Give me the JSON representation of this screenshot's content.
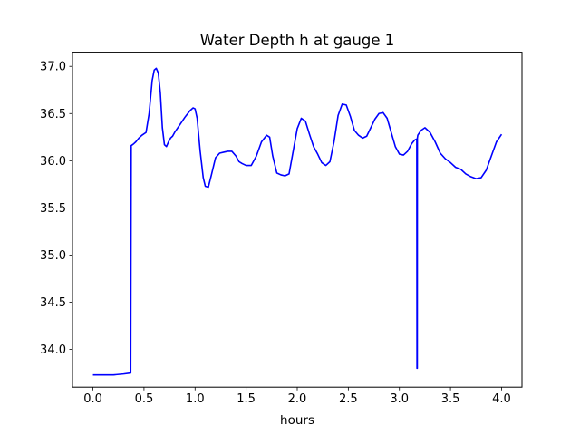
{
  "chart_data": {
    "type": "line",
    "title": "Water Depth h at gauge 1",
    "xlabel": "hours",
    "ylabel": "",
    "xlim": [
      -0.2,
      4.2
    ],
    "ylim": [
      33.6,
      37.15
    ],
    "xticks": [
      0.0,
      0.5,
      1.0,
      1.5,
      2.0,
      2.5,
      3.0,
      3.5,
      4.0
    ],
    "xtick_labels": [
      "0.0",
      "0.5",
      "1.0",
      "1.5",
      "2.0",
      "2.5",
      "3.0",
      "3.5",
      "4.0"
    ],
    "yticks": [
      34.0,
      34.5,
      35.0,
      35.5,
      36.0,
      36.5,
      37.0
    ],
    "ytick_labels": [
      "34.0",
      "34.5",
      "35.0",
      "35.5",
      "36.0",
      "36.5",
      "37.0"
    ],
    "grid": false,
    "series": [
      {
        "color": "#0000ff",
        "x": [
          0.0,
          0.1,
          0.2,
          0.3,
          0.37,
          0.375,
          0.4,
          0.42,
          0.45,
          0.48,
          0.52,
          0.55,
          0.58,
          0.6,
          0.62,
          0.64,
          0.66,
          0.68,
          0.7,
          0.72,
          0.74,
          0.76,
          0.78,
          0.8,
          0.85,
          0.9,
          0.95,
          0.98,
          1.0,
          1.02,
          1.05,
          1.08,
          1.1,
          1.13,
          1.16,
          1.2,
          1.24,
          1.28,
          1.32,
          1.36,
          1.4,
          1.43,
          1.46,
          1.5,
          1.55,
          1.6,
          1.65,
          1.7,
          1.73,
          1.76,
          1.8,
          1.84,
          1.88,
          1.92,
          1.96,
          2.0,
          2.04,
          2.08,
          2.12,
          2.16,
          2.2,
          2.24,
          2.28,
          2.32,
          2.36,
          2.4,
          2.44,
          2.48,
          2.52,
          2.56,
          2.6,
          2.64,
          2.68,
          2.72,
          2.76,
          2.8,
          2.84,
          2.88,
          2.92,
          2.96,
          3.0,
          3.04,
          3.08,
          3.12,
          3.15,
          3.17,
          3.172,
          3.175,
          3.176,
          3.18,
          3.21,
          3.25,
          3.3,
          3.35,
          3.4,
          3.45,
          3.5,
          3.55,
          3.6,
          3.65,
          3.7,
          3.75,
          3.8,
          3.85,
          3.9,
          3.95,
          4.0
        ],
        "y": [
          33.73,
          33.73,
          33.73,
          33.74,
          33.75,
          36.16,
          36.18,
          36.2,
          36.24,
          36.27,
          36.3,
          36.5,
          36.85,
          36.96,
          36.98,
          36.93,
          36.72,
          36.35,
          36.17,
          36.15,
          36.2,
          36.24,
          36.26,
          36.3,
          36.38,
          36.46,
          36.53,
          36.56,
          36.55,
          36.45,
          36.1,
          35.82,
          35.73,
          35.72,
          35.85,
          36.03,
          36.08,
          36.09,
          36.1,
          36.1,
          36.05,
          35.99,
          35.97,
          35.95,
          35.95,
          36.05,
          36.2,
          36.27,
          36.25,
          36.05,
          35.87,
          35.85,
          35.84,
          35.86,
          36.1,
          36.34,
          36.45,
          36.42,
          36.28,
          36.15,
          36.07,
          35.98,
          35.95,
          35.99,
          36.2,
          36.48,
          36.6,
          36.59,
          36.47,
          36.32,
          36.27,
          36.24,
          36.26,
          36.35,
          36.44,
          36.5,
          36.51,
          36.45,
          36.3,
          36.15,
          36.07,
          36.06,
          36.1,
          36.18,
          36.22,
          36.23,
          33.8,
          33.8,
          36.24,
          36.27,
          36.32,
          36.35,
          36.3,
          36.2,
          36.08,
          36.02,
          35.98,
          35.93,
          35.91,
          35.86,
          35.83,
          35.81,
          35.82,
          35.9,
          36.05,
          36.2,
          36.28
        ]
      }
    ]
  }
}
